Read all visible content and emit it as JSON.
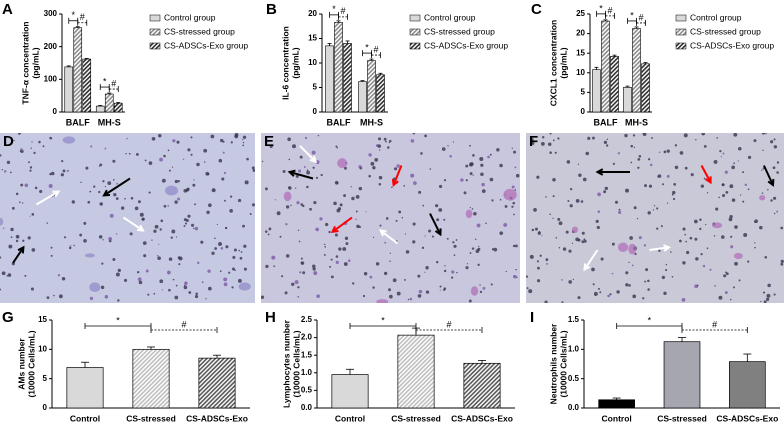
{
  "chart_data": [
    {
      "type": "grouped_bar",
      "panel": "A",
      "y_label": [
        "TNF-α concentration",
        "(pg/mL)"
      ],
      "categories": [
        "BALF",
        "MH-S"
      ],
      "series": [
        {
          "name": "Control group",
          "color": "#d9d9d9",
          "hatch": false,
          "values": [
            138,
            18
          ],
          "errors": [
            3,
            2
          ]
        },
        {
          "name": "CS-stressed group",
          "color": "#8c8c8c",
          "hatch": true,
          "values": [
            258,
            55
          ],
          "errors": [
            3,
            3
          ]
        },
        {
          "name": "CS-ADSCs-Exo group",
          "color": "#303030",
          "hatch": true,
          "values": [
            162,
            27
          ],
          "errors": [
            2,
            2
          ]
        }
      ],
      "ylim": [
        0,
        300
      ],
      "yticks": [
        0,
        100,
        200,
        300
      ],
      "annotations": [
        "*",
        "#",
        "*",
        "#"
      ]
    },
    {
      "type": "grouped_bar",
      "panel": "B",
      "y_label": [
        "IL-6 concentration",
        "(pg/mL)"
      ],
      "categories": [
        "BALF",
        "MH-S"
      ],
      "series": [
        {
          "name": "Control group",
          "color": "#d9d9d9",
          "hatch": false,
          "values": [
            13.5,
            6.2
          ],
          "errors": [
            0.5,
            0.2
          ]
        },
        {
          "name": "CS-stressed group",
          "color": "#8c8c8c",
          "hatch": true,
          "values": [
            18.3,
            10.5
          ],
          "errors": [
            0.3,
            0.3
          ]
        },
        {
          "name": "CS-ADSCs-Exo group",
          "color": "#303030",
          "hatch": true,
          "values": [
            14.0,
            7.6
          ],
          "errors": [
            0.5,
            0.3
          ]
        }
      ],
      "ylim": [
        0,
        20
      ],
      "yticks": [
        0,
        5,
        10,
        15,
        20
      ],
      "annotations": [
        "*",
        "#",
        "*",
        "#"
      ]
    },
    {
      "type": "grouped_bar",
      "panel": "C",
      "y_label": [
        "CXCL1 concentration",
        "(pg/mL)"
      ],
      "categories": [
        "BALF",
        "MH-S"
      ],
      "series": [
        {
          "name": "Control group",
          "color": "#d9d9d9",
          "hatch": false,
          "values": [
            10.8,
            6.3
          ],
          "errors": [
            0.6,
            0.3
          ]
        },
        {
          "name": "CS-stressed group",
          "color": "#8c8c8c",
          "hatch": true,
          "values": [
            23.2,
            21.3
          ],
          "errors": [
            0.3,
            0.4
          ]
        },
        {
          "name": "CS-ADSCs-Exo group",
          "color": "#303030",
          "hatch": true,
          "values": [
            14.2,
            12.3
          ],
          "errors": [
            0.3,
            0.3
          ]
        }
      ],
      "ylim": [
        0,
        25
      ],
      "yticks": [
        0,
        5,
        10,
        15,
        20,
        25
      ],
      "annotations": [
        "*",
        "#",
        "*",
        "#"
      ]
    },
    {
      "type": "bar",
      "panel": "G",
      "y_label": [
        "AMs number",
        "(10000 Cells/mL)"
      ],
      "categories": [
        "Control",
        "CS-stressed",
        "CS-ADSCs-Exo"
      ],
      "values": [
        6.9,
        10.0,
        8.5
      ],
      "errors": [
        0.9,
        0.4,
        0.5
      ],
      "colors": [
        "#d9d9d9",
        "#bfbfbf",
        "#595959"
      ],
      "hatch": [
        false,
        true,
        true
      ],
      "ylim": [
        0,
        15
      ],
      "yticks": [
        0,
        5,
        10,
        15
      ],
      "annotations": [
        "*",
        "#"
      ]
    },
    {
      "type": "bar",
      "panel": "H",
      "y_label": [
        "Lymphocytes number",
        "(10000 Cells/mL)"
      ],
      "categories": [
        "Control",
        "CS-stressed",
        "CS-ADSCs-Exo"
      ],
      "values": [
        0.95,
        2.07,
        1.27
      ],
      "errors": [
        0.15,
        0.2,
        0.08
      ],
      "colors": [
        "#d9d9d9",
        "#bfbfbf",
        "#595959"
      ],
      "hatch": [
        false,
        true,
        true
      ],
      "ylim": [
        0,
        2.5
      ],
      "yticks": [
        {
          "value": 0,
          "label": "0.0"
        },
        0.5,
        {
          "value": 1,
          "label": "1.0"
        },
        1.5,
        {
          "value": 2,
          "label": "2.0"
        },
        2.5
      ],
      "annotations": [
        "*",
        "#"
      ]
    },
    {
      "type": "bar",
      "panel": "I",
      "y_label": [
        "Neutrophils number",
        "(10000 Cells/mL)"
      ],
      "categories": [
        "Control",
        "CS-stressed",
        "CS-ADSCs-Exo"
      ],
      "values": [
        0.14,
        1.13,
        0.79
      ],
      "errors": [
        0.03,
        0.07,
        0.13
      ],
      "colors": [
        "#000000",
        "#a6a6b0",
        "#808080"
      ],
      "hatch": [
        false,
        false,
        false
      ],
      "ylim": [
        0,
        1.5
      ],
      "yticks": [
        {
          "value": 0,
          "label": "0.0"
        },
        0.5,
        {
          "value": 1,
          "label": "1.0"
        },
        1.5
      ],
      "annotations": [
        "*",
        "#"
      ]
    }
  ],
  "image_panels": [
    {
      "label": "D"
    },
    {
      "label": "E"
    },
    {
      "label": "F"
    }
  ]
}
